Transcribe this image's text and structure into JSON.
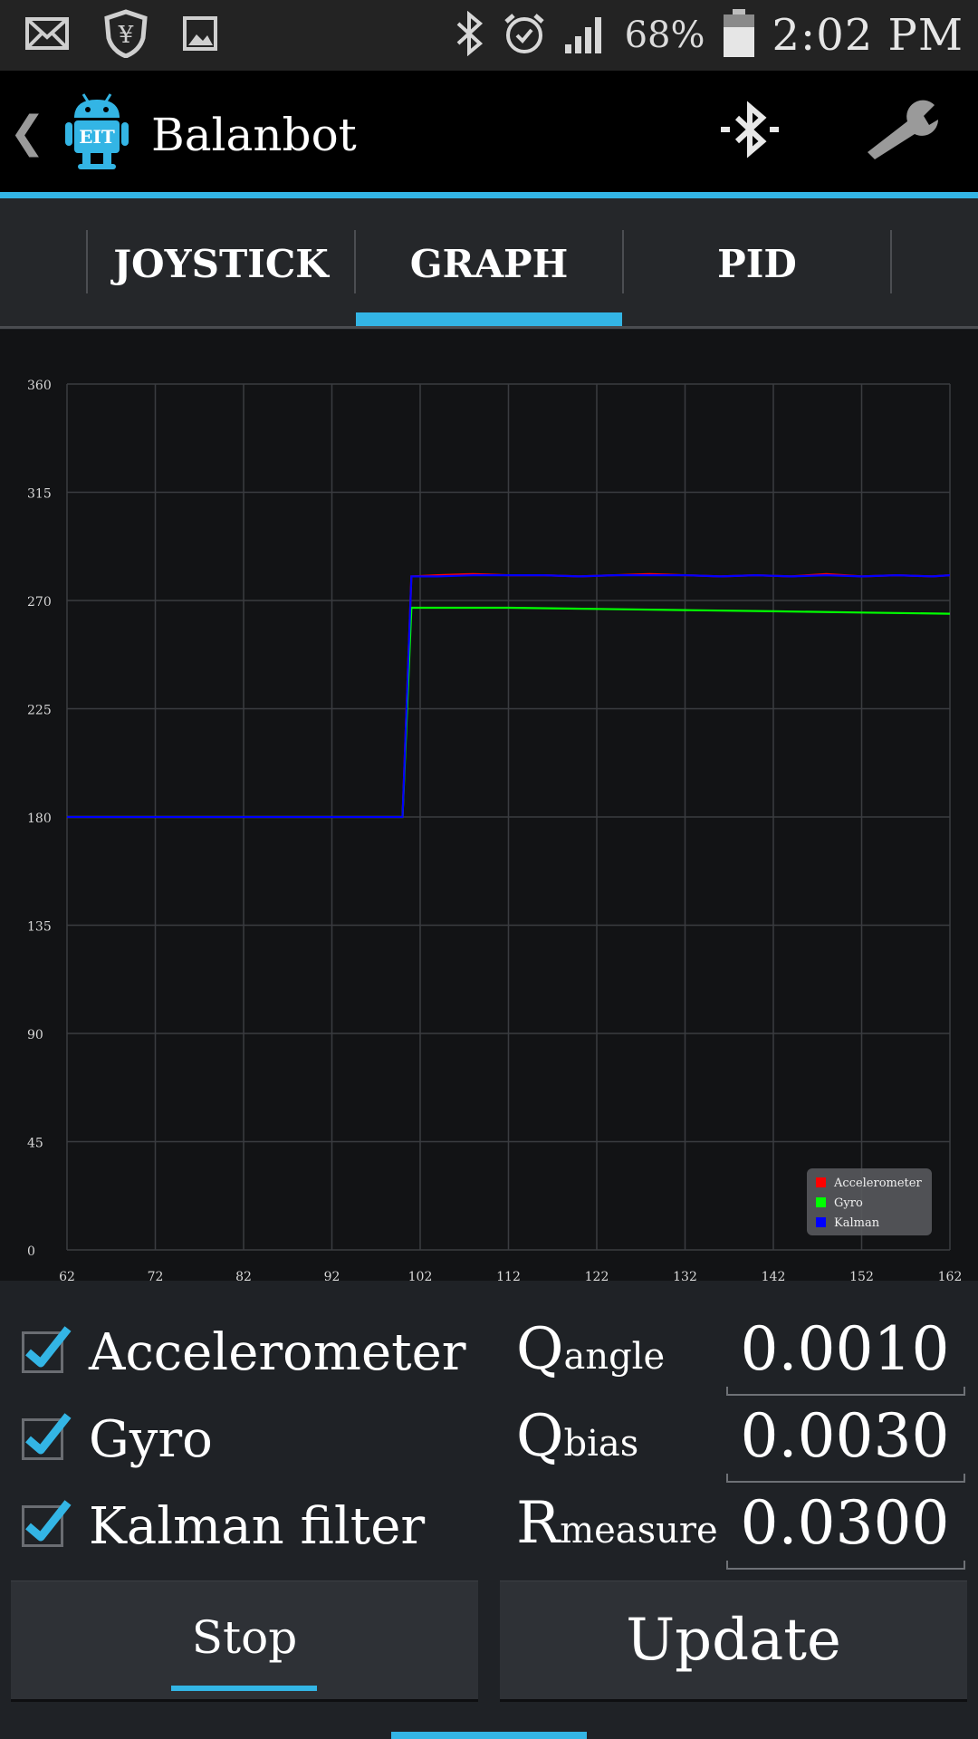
{
  "status_bar": {
    "battery_text": "68%",
    "clock": "2:02 PM",
    "icons": [
      "mail-icon",
      "shield-currency-icon",
      "image-icon",
      "bluetooth-icon",
      "alarm-icon",
      "signal-icon",
      "battery-icon"
    ]
  },
  "action_bar": {
    "title": "Balanbot",
    "logo_text": "EIT",
    "icons": [
      "back-chevron-icon",
      "android-eit-logo",
      "bluetooth-icon",
      "wrench-settings-icon"
    ],
    "back_glyph": "❮"
  },
  "tabs": [
    {
      "label": "JOYSTICK",
      "selected": false
    },
    {
      "label": "GRAPH",
      "selected": true
    },
    {
      "label": "PID",
      "selected": false
    }
  ],
  "chart_data": {
    "type": "line",
    "ylim": [
      0,
      360
    ],
    "xlim": [
      62,
      162
    ],
    "yticks": [
      "0",
      "45",
      "90",
      "135",
      "180",
      "225",
      "270",
      "315",
      "360"
    ],
    "xticks": [
      "62",
      "72",
      "82",
      "92",
      "102",
      "112",
      "122",
      "132",
      "142",
      "152",
      "162"
    ],
    "grid": true,
    "legend_position": "bottom-right",
    "series": [
      {
        "name": "Accelerometer",
        "color": "#ff0000",
        "x": [
          62,
          100,
          101,
          104,
          108,
          112,
          116,
          120,
          124,
          128,
          132,
          136,
          140,
          144,
          148,
          152,
          156,
          160,
          162
        ],
        "y": [
          180,
          180,
          280,
          280.5,
          281,
          280.5,
          280.5,
          280,
          280.5,
          281,
          280.5,
          280,
          280.5,
          280,
          281,
          280,
          280.5,
          280,
          280.5
        ]
      },
      {
        "name": "Gyro",
        "color": "#00ff00",
        "x": [
          62,
          100,
          101,
          112,
          122,
          132,
          142,
          152,
          162
        ],
        "y": [
          180,
          180,
          267,
          267,
          266.5,
          266,
          265.5,
          265,
          264.5
        ]
      },
      {
        "name": "Kalman",
        "color": "#0000ff",
        "x": [
          62,
          100,
          101,
          104,
          108,
          112,
          116,
          120,
          124,
          128,
          132,
          136,
          140,
          144,
          148,
          152,
          156,
          160,
          162
        ],
        "y": [
          180,
          180,
          280,
          280,
          280.5,
          280.5,
          280.5,
          280,
          280.5,
          280.5,
          280.5,
          280,
          280.5,
          280,
          280.5,
          280,
          280.5,
          280,
          280.5
        ]
      }
    ]
  },
  "checkboxes": [
    {
      "label": "Accelerometer",
      "checked": true
    },
    {
      "label": "Gyro",
      "checked": true
    },
    {
      "label": "Kalman filter",
      "checked": true
    }
  ],
  "params": [
    {
      "label_main": "Q",
      "label_sub": "angle",
      "value": "0.0010"
    },
    {
      "label_main": "Q",
      "label_sub": "bias",
      "value": "0.0030"
    },
    {
      "label_main": "R",
      "label_sub": "measure",
      "value": "0.0300"
    }
  ],
  "buttons": {
    "stop": "Stop",
    "update": "Update"
  },
  "colors": {
    "accent": "#33b5e5"
  }
}
